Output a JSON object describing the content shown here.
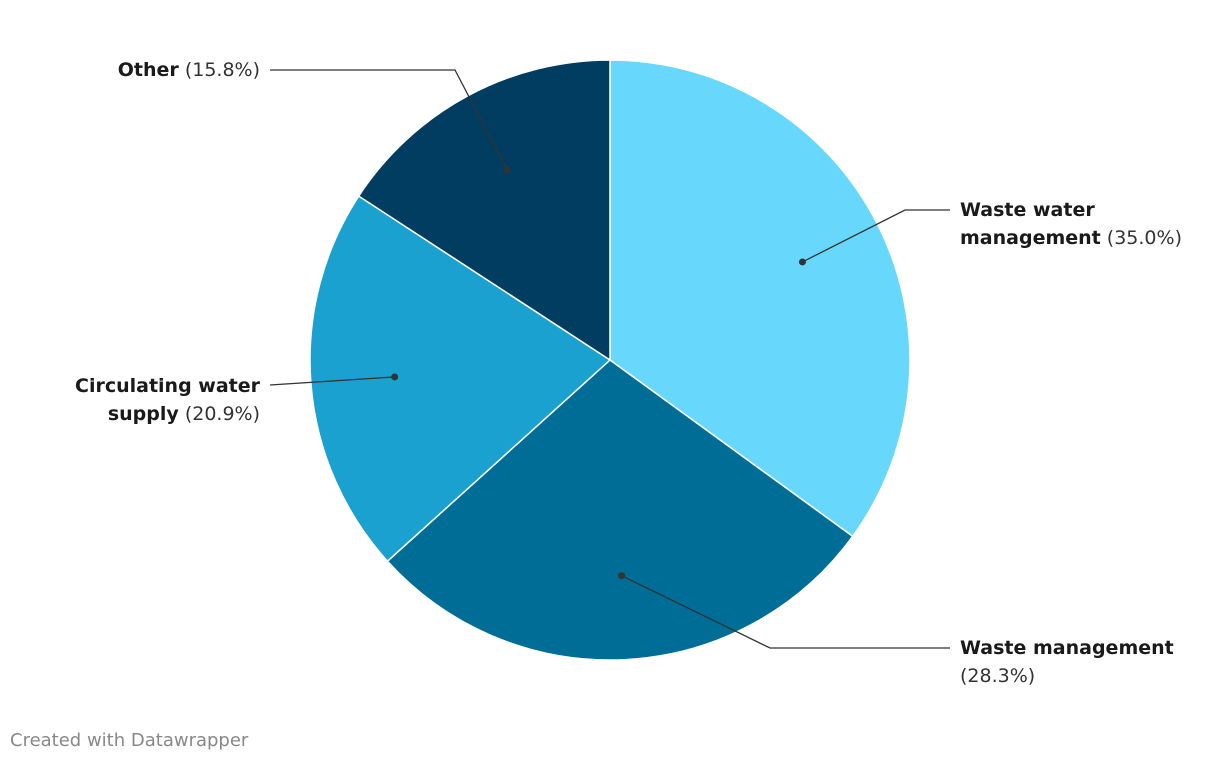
{
  "chart_data": {
    "type": "pie",
    "categories": [
      "Waste water management",
      "Waste management",
      "Circulating water supply",
      "Other"
    ],
    "values": [
      35.0,
      28.3,
      20.9,
      15.8
    ],
    "value_labels": [
      "(35.0%)",
      "(28.3%)",
      "(20.9%)",
      "(15.8%)"
    ],
    "colors": [
      "#67d7fc",
      "#006d96",
      "#1aa1cf",
      "#003d61"
    ],
    "credit": "Created with Datawrapper"
  }
}
